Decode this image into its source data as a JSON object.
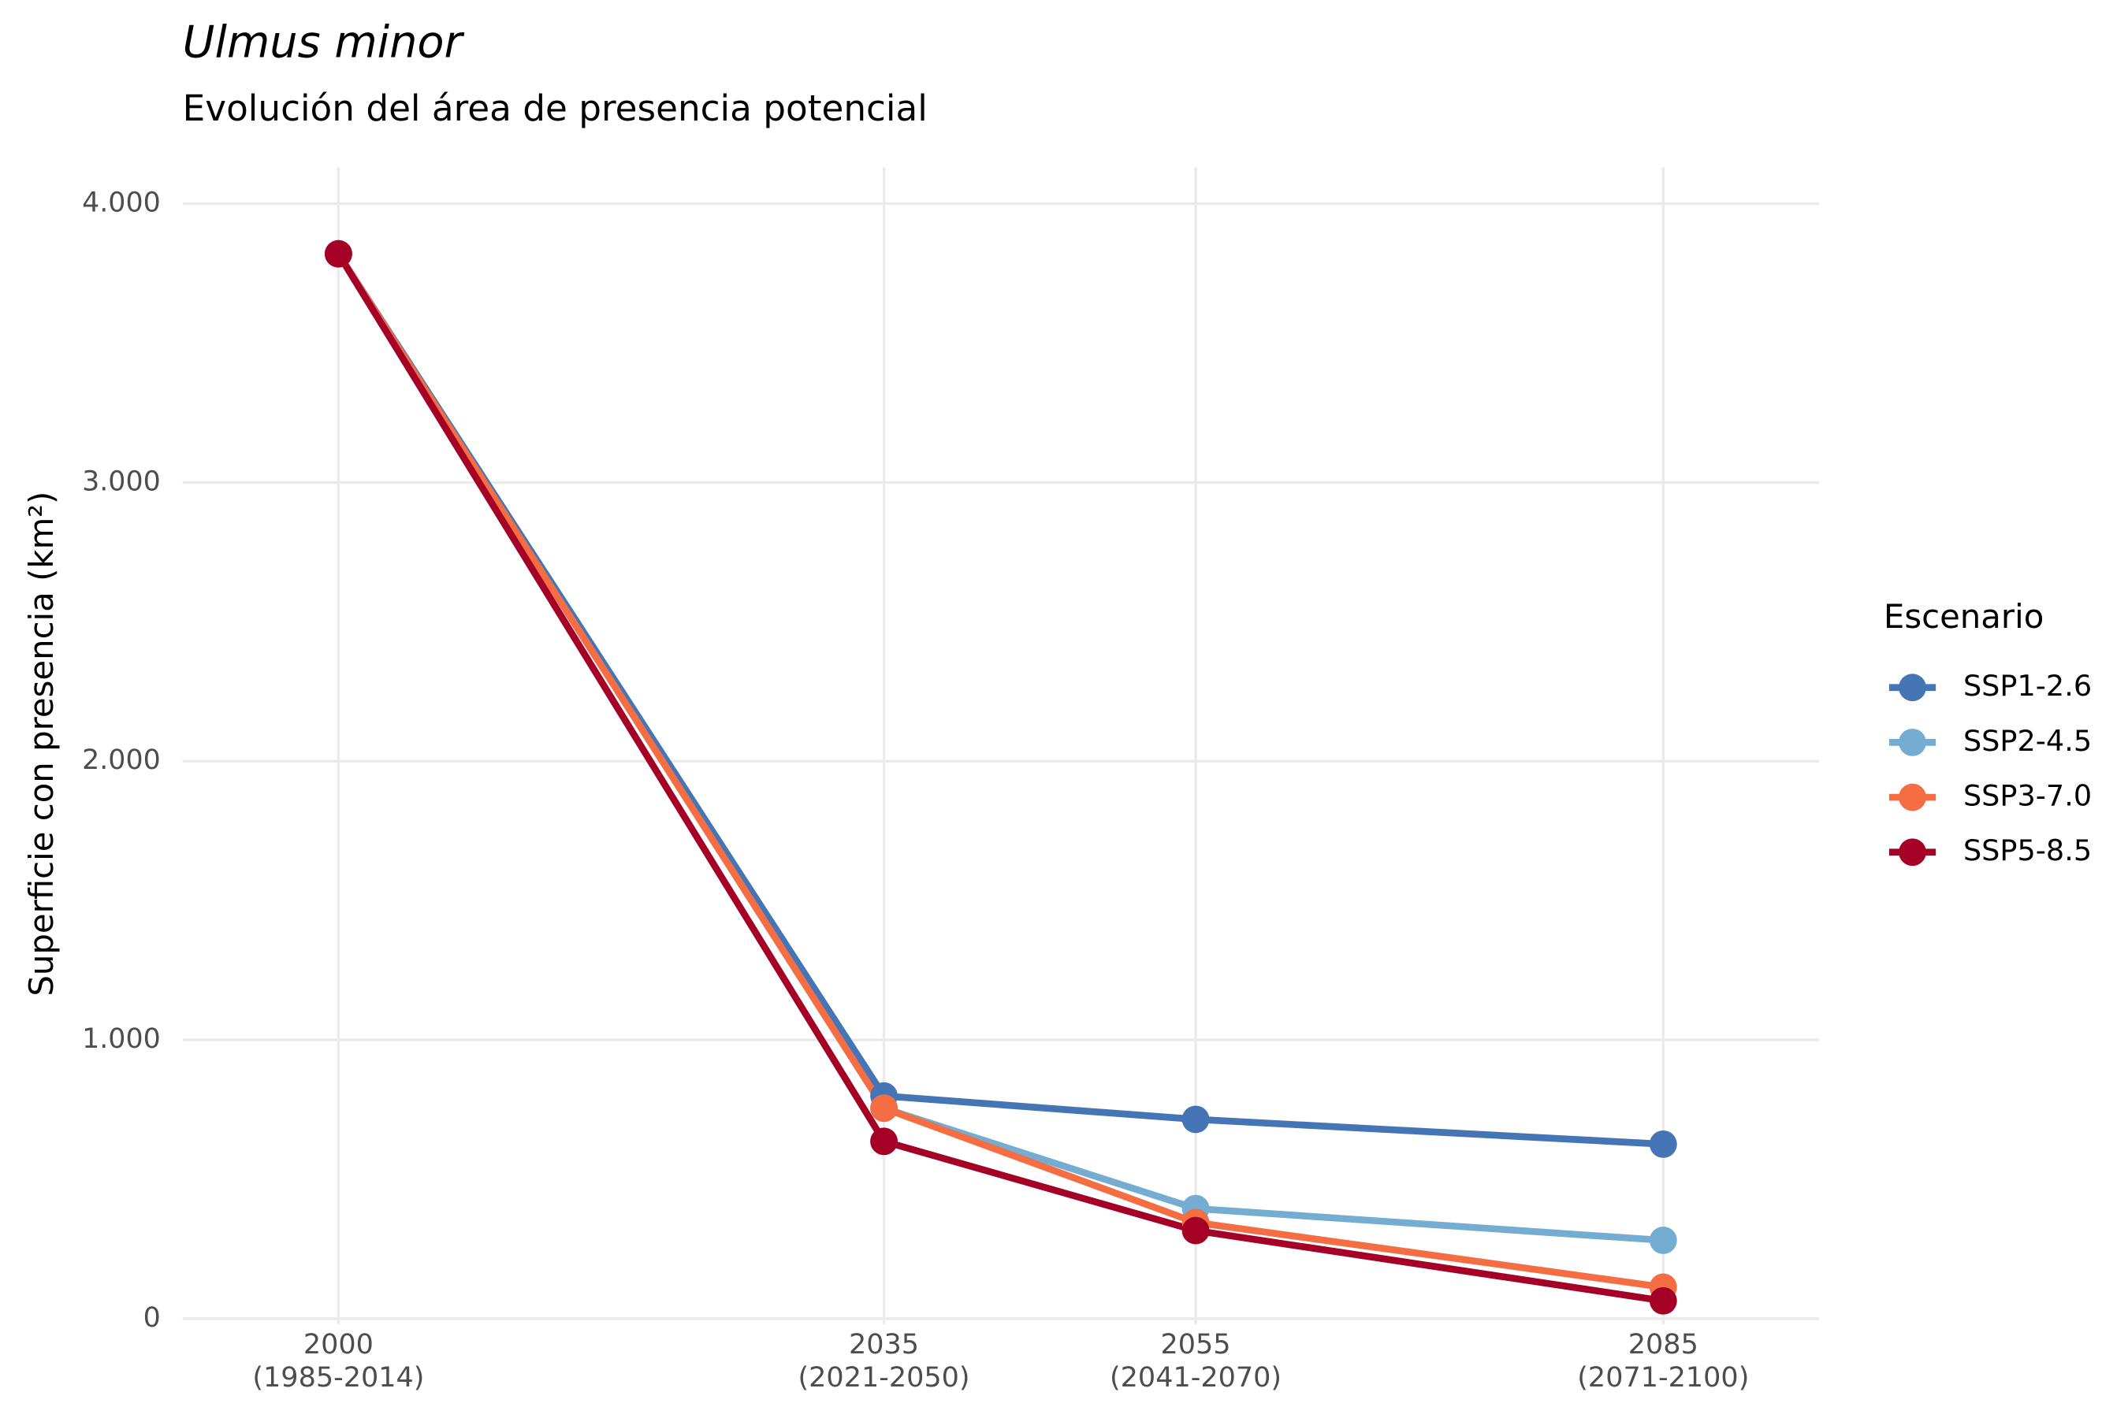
{
  "chart_data": {
    "type": "line",
    "title": "Ulmus minor",
    "subtitle": "Evolución del área de presencia potencial",
    "y_label": "Superficie con presencia (km²)",
    "legend_title": "Escenario",
    "legend_position": "right",
    "grid": true,
    "x": [
      2000,
      2035,
      2055,
      2085
    ],
    "xlim": [
      1990,
      2095
    ],
    "xticks": [
      {
        "value": 2000,
        "label": "2000\n(1985-2014)"
      },
      {
        "value": 2035,
        "label": "2035\n(2021-2050)"
      },
      {
        "value": 2055,
        "label": "2055\n(2041-2070)"
      },
      {
        "value": 2085,
        "label": "2085\n(2071-2100)"
      }
    ],
    "ylim": [
      -20,
      4130
    ],
    "yticks": [
      0,
      {
        "value": 1000,
        "label": "1.000"
      },
      {
        "value": 2000,
        "label": "2.000"
      },
      {
        "value": 3000,
        "label": "3.000"
      },
      {
        "value": 4000,
        "label": "4.000"
      }
    ],
    "series": [
      {
        "name": "SSP1-2.6",
        "color": "#4575b4",
        "values": [
          3820,
          799,
          715,
          626
        ]
      },
      {
        "name": "SSP2-4.5",
        "color": "#74add1",
        "values": [
          3820,
          755,
          395,
          281
        ]
      },
      {
        "name": "SSP3-7.0",
        "color": "#f46d43",
        "values": [
          3820,
          755,
          345,
          113
        ]
      },
      {
        "name": "SSP5-8.5",
        "color": "#a50026",
        "values": [
          3820,
          636,
          316,
          64
        ]
      }
    ]
  }
}
